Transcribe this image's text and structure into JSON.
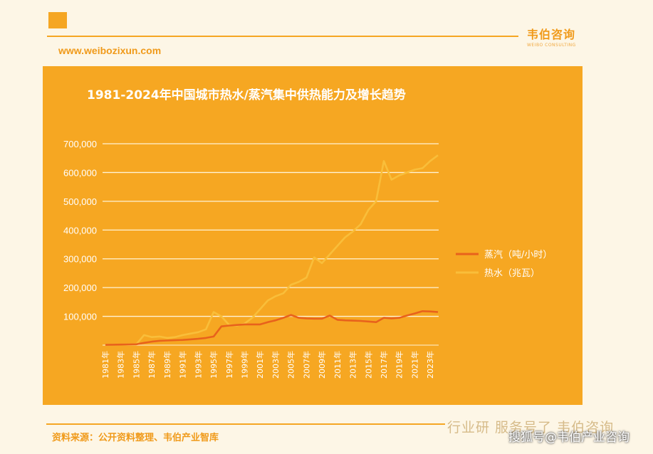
{
  "header": {
    "brand_cn": "韦伯咨询",
    "brand_en": "WEIBO CONSULTING",
    "website": "www.weibozixun.com"
  },
  "footer": {
    "source": "资料来源：公开资料整理、韦伯产业智库",
    "watermark": "行业研 服务号了 韦伯咨询",
    "sohu": "搜狐号@韦伯产业咨询"
  },
  "colors": {
    "panel": "#f6a722",
    "steam": "#e8621c",
    "hot_water": "#f9be3a",
    "grid": "#fff3d6"
  },
  "chart_data": {
    "type": "line",
    "title": "1981-2024年中国城市热水/蒸汽集中供热能力及增长趋势",
    "xlabel": "",
    "ylabel": "",
    "ylim": [
      0,
      700000
    ],
    "yticks": [
      "700,000",
      "600,000",
      "500,000",
      "400,000",
      "300,000",
      "200,000",
      "100,000"
    ],
    "ytick_values": [
      700000,
      600000,
      500000,
      400000,
      300000,
      200000,
      100000
    ],
    "grid": true,
    "legend_position": "right",
    "categories": [
      "1981年",
      "1982年",
      "1983年",
      "1984年",
      "1985年",
      "1986年",
      "1987年",
      "1988年",
      "1989年",
      "1990年",
      "1991年",
      "1992年",
      "1993年",
      "1994年",
      "1995年",
      "1996年",
      "1997年",
      "1998年",
      "1999年",
      "2000年",
      "2001年",
      "2002年",
      "2003年",
      "2004年",
      "2005年",
      "2006年",
      "2007年",
      "2008年",
      "2009年",
      "2010年",
      "2011年",
      "2012年",
      "2013年",
      "2014年",
      "2015年",
      "2016年",
      "2017年",
      "2018年",
      "2019年",
      "2020年",
      "2021年",
      "2022年",
      "2023年",
      "2024年"
    ],
    "tick_labels": [
      "1981年",
      "1983年",
      "1985年",
      "1987年",
      "1989年",
      "1991年",
      "1993年",
      "1995年",
      "1997年",
      "1999年",
      "2001年",
      "2003年",
      "2005年",
      "2007年",
      "2009年",
      "2011年",
      "2013年",
      "2015年",
      "2017年",
      "2019年",
      "2021年",
      "2023年"
    ],
    "series": [
      {
        "name": "蒸汽（吨/小时）",
        "color": "#e8621c",
        "values": [
          1000,
          1500,
          2000,
          2500,
          3000,
          8000,
          12000,
          15000,
          16000,
          17000,
          18000,
          20000,
          22000,
          25000,
          30000,
          65000,
          68000,
          70000,
          72000,
          72000,
          72000,
          80000,
          86000,
          95000,
          105000,
          95000,
          93000,
          92000,
          92000,
          103000,
          88000,
          86000,
          85000,
          84000,
          82000,
          80000,
          95000,
          93000,
          95000,
          103000,
          110000,
          118000,
          117000,
          115000
        ]
      },
      {
        "name": "热水（兆瓦）",
        "color": "#f9be3a",
        "values": [
          1000,
          1500,
          2000,
          2500,
          3000,
          35000,
          28000,
          30000,
          25000,
          28000,
          35000,
          40000,
          45000,
          55000,
          115000,
          100000,
          70000,
          68000,
          75000,
          95000,
          125000,
          155000,
          170000,
          180000,
          210000,
          220000,
          235000,
          305000,
          285000,
          315000,
          345000,
          375000,
          395000,
          420000,
          470000,
          500000,
          640000,
          575000,
          590000,
          600000,
          610000,
          615000,
          640000,
          660000
        ]
      }
    ]
  }
}
